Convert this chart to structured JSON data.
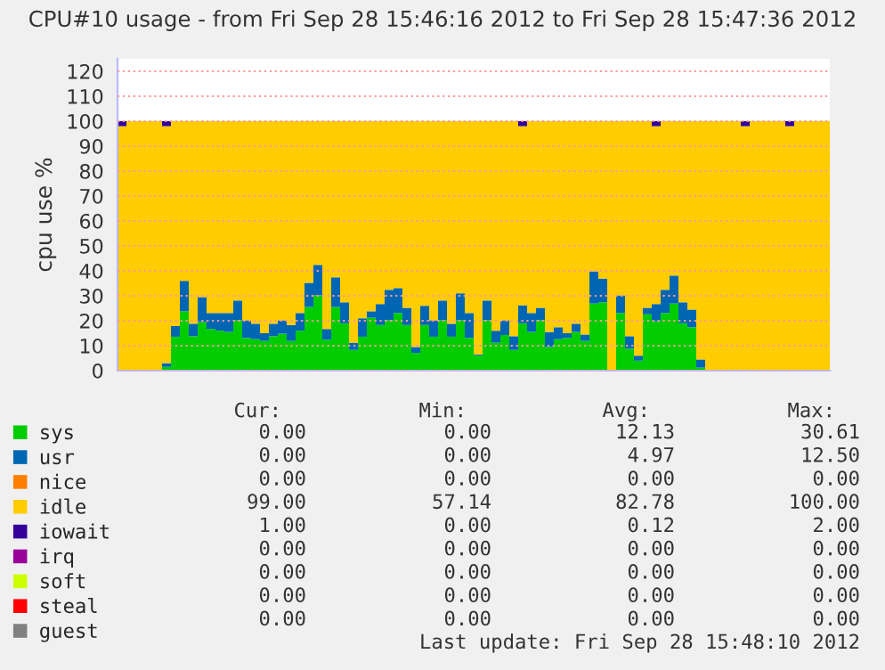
{
  "chart_data": {
    "type": "bar",
    "stacked": true,
    "title": "CPU#10 usage - from Fri Sep 28 15:46:16 2012 to Fri Sep 28 15:47:36 2012",
    "ylabel": "cpu use %",
    "categories": [
      null,
      null,
      null,
      null,
      null,
      null,
      null,
      null,
      null,
      null,
      null,
      null,
      null,
      null,
      null,
      null,
      null,
      null,
      null,
      null,
      null,
      null,
      null,
      null,
      null,
      null,
      null,
      null,
      null,
      null,
      null,
      null,
      null,
      null,
      null,
      null,
      null,
      null,
      null,
      null,
      null,
      null,
      null,
      null,
      null,
      null,
      null,
      null,
      null,
      null,
      null,
      null,
      null,
      null,
      null,
      null,
      null,
      null,
      null,
      null,
      null,
      null,
      null,
      null,
      null,
      null,
      null,
      null,
      null,
      null,
      null,
      null,
      null,
      null,
      null,
      null,
      null,
      null,
      null,
      null
    ],
    "ylim": [
      0,
      125
    ],
    "yticks": [
      0,
      10,
      20,
      30,
      40,
      50,
      60,
      70,
      80,
      90,
      100,
      110,
      120
    ],
    "grid": "y",
    "legend": "bottom",
    "series": [
      {
        "name": "sys",
        "color": "#00cc00",
        "values": [
          0,
          0,
          0,
          0,
          0,
          1.5,
          13.6,
          23.8,
          13.8,
          19.5,
          16.7,
          16.0,
          15.5,
          20.2,
          13.1,
          12.6,
          11.9,
          13.8,
          14.8,
          11.9,
          16.0,
          25.5,
          30.2,
          12.4,
          25.5,
          19.0,
          8.3,
          13.6,
          21.2,
          18.3,
          20.2,
          23.1,
          18.3,
          7.1,
          18.3,
          13.6,
          20.2,
          13.6,
          20.2,
          13.1,
          6.0,
          20.2,
          11.2,
          14.3,
          8.3,
          19.0,
          15.5,
          20.2,
          9.5,
          12.6,
          13.1,
          15.5,
          11.9,
          26.9,
          27.4,
          0,
          23.1,
          8.8,
          4.0,
          22.6,
          19.8,
          23.1,
          26.9,
          19.0,
          17.4,
          1.2,
          0,
          0,
          0,
          0,
          0,
          0,
          0,
          0,
          0,
          0,
          0,
          0,
          0,
          0
        ]
      },
      {
        "name": "usr",
        "color": "#0066b3",
        "values": [
          0,
          0,
          0,
          0,
          0,
          1.5,
          4.3,
          12.2,
          5.0,
          10.0,
          6.4,
          7.1,
          7.6,
          7.9,
          7.1,
          6.2,
          3.1,
          5.0,
          5.4,
          6.4,
          7.1,
          9.7,
          12.2,
          4.3,
          11.9,
          8.4,
          2.9,
          7.4,
          2.6,
          8.4,
          12.2,
          10.0,
          6.9,
          2.4,
          7.7,
          6.6,
          7.9,
          5.2,
          10.8,
          10.0,
          0.4,
          7.9,
          4.8,
          5.9,
          5.5,
          7.2,
          7.6,
          5.0,
          6.0,
          4.8,
          1.9,
          3.3,
          2.6,
          12.9,
          9.5,
          0,
          7.1,
          5.0,
          2.0,
          2.6,
          6.9,
          9.3,
          11.2,
          8.4,
          7.1,
          3.3,
          0,
          0,
          0,
          0,
          0,
          0,
          0,
          0,
          0,
          0,
          0,
          0,
          0,
          0
        ]
      },
      {
        "name": "nice",
        "color": "#ff8000",
        "values": [
          0,
          0,
          0,
          0,
          0,
          0,
          0,
          0,
          0,
          0,
          0,
          0,
          0,
          0,
          0,
          0,
          0,
          0,
          0,
          0,
          0,
          0,
          0,
          0,
          0,
          0,
          0,
          0,
          0,
          0,
          0,
          0,
          0,
          0,
          0,
          0,
          0,
          0,
          0,
          0,
          0,
          0,
          0,
          0,
          0,
          0,
          0,
          0,
          0,
          0,
          0,
          0,
          0,
          0,
          0,
          0,
          0,
          0,
          0,
          0,
          0,
          0,
          0,
          0,
          0,
          0,
          0,
          0,
          0,
          0,
          0,
          0,
          0,
          0,
          0,
          0,
          0,
          0,
          0,
          0
        ]
      },
      {
        "name": "idle",
        "color": "#ffcc00",
        "values": [
          98,
          100,
          100,
          100,
          100,
          95,
          82.1,
          64.0,
          81.2,
          70.5,
          76.9,
          76.9,
          76.9,
          71.9,
          79.8,
          81.2,
          85.0,
          81.2,
          79.8,
          81.7,
          76.9,
          64.8,
          57.6,
          83.3,
          62.6,
          72.6,
          88.8,
          79.0,
          76.2,
          73.3,
          67.6,
          66.9,
          74.8,
          90.5,
          74.0,
          79.8,
          71.9,
          81.2,
          69.0,
          76.9,
          93.6,
          71.9,
          84.0,
          79.8,
          86.2,
          71.8,
          76.9,
          74.8,
          84.5,
          82.6,
          85.0,
          81.2,
          85.5,
          60.2,
          63.1,
          100,
          69.8,
          86.2,
          94.0,
          74.8,
          71.3,
          67.6,
          61.9,
          72.6,
          75.5,
          95.5,
          100,
          100,
          100,
          100,
          98,
          100,
          100,
          100,
          100,
          98,
          100,
          100,
          100,
          100
        ]
      },
      {
        "name": "iowait",
        "color": "#330099",
        "values": [
          2,
          0,
          0,
          0,
          0,
          2,
          0,
          0,
          0,
          0,
          0,
          0,
          0,
          0,
          0,
          0,
          0,
          0,
          0,
          0,
          0,
          0,
          0,
          0,
          0,
          0,
          0,
          0,
          0,
          0,
          0,
          0,
          0,
          0,
          0,
          0,
          0,
          0,
          0,
          0,
          0,
          0,
          0,
          0,
          0,
          2,
          0,
          0,
          0,
          0,
          0,
          0,
          0,
          0,
          0,
          0,
          0,
          0,
          0,
          0,
          2,
          0,
          0,
          0,
          0,
          0,
          0,
          0,
          0,
          0,
          2,
          0,
          0,
          0,
          0,
          2,
          0,
          0,
          0,
          0
        ]
      },
      {
        "name": "irq",
        "color": "#990099",
        "values": [
          0,
          0,
          0,
          0,
          0,
          0,
          0,
          0,
          0,
          0,
          0,
          0,
          0,
          0,
          0,
          0,
          0,
          0,
          0,
          0,
          0,
          0,
          0,
          0,
          0,
          0,
          0,
          0,
          0,
          0,
          0,
          0,
          0,
          0,
          0,
          0,
          0,
          0,
          0,
          0,
          0,
          0,
          0,
          0,
          0,
          0,
          0,
          0,
          0,
          0,
          0,
          0,
          0,
          0,
          0,
          0,
          0,
          0,
          0,
          0,
          0,
          0,
          0,
          0,
          0,
          0,
          0,
          0,
          0,
          0,
          0,
          0,
          0,
          0,
          0,
          0,
          0,
          0,
          0,
          0
        ]
      },
      {
        "name": "soft",
        "color": "#ccff00",
        "values": [
          0,
          0,
          0,
          0,
          0,
          0,
          0,
          0,
          0,
          0,
          0,
          0,
          0,
          0,
          0,
          0,
          0,
          0,
          0,
          0,
          0,
          0,
          0,
          0,
          0,
          0,
          0,
          0,
          0,
          0,
          0,
          0,
          0,
          0,
          0,
          0,
          0,
          0,
          0,
          0,
          0,
          0,
          0,
          0,
          0,
          0,
          0,
          0,
          0,
          0,
          0,
          0,
          0,
          0,
          0,
          0,
          0,
          0,
          0,
          0,
          0,
          0,
          0,
          0,
          0,
          0,
          0,
          0,
          0,
          0,
          0,
          0,
          0,
          0,
          0,
          0,
          0,
          0,
          0,
          0
        ]
      },
      {
        "name": "steal",
        "color": "#ff0000",
        "values": [
          0,
          0,
          0,
          0,
          0,
          0,
          0,
          0,
          0,
          0,
          0,
          0,
          0,
          0,
          0,
          0,
          0,
          0,
          0,
          0,
          0,
          0,
          0,
          0,
          0,
          0,
          0,
          0,
          0,
          0,
          0,
          0,
          0,
          0,
          0,
          0,
          0,
          0,
          0,
          0,
          0,
          0,
          0,
          0,
          0,
          0,
          0,
          0,
          0,
          0,
          0,
          0,
          0,
          0,
          0,
          0,
          0,
          0,
          0,
          0,
          0,
          0,
          0,
          0,
          0,
          0,
          0,
          0,
          0,
          0,
          0,
          0,
          0,
          0,
          0,
          0,
          0,
          0,
          0,
          0
        ]
      },
      {
        "name": "guest",
        "color": "#808080",
        "values": [
          0,
          0,
          0,
          0,
          0,
          0,
          0,
          0,
          0,
          0,
          0,
          0,
          0,
          0,
          0,
          0,
          0,
          0,
          0,
          0,
          0,
          0,
          0,
          0,
          0,
          0,
          0,
          0,
          0,
          0,
          0,
          0,
          0,
          0,
          0,
          0,
          0,
          0,
          0,
          0,
          0,
          0,
          0,
          0,
          0,
          0,
          0,
          0,
          0,
          0,
          0,
          0,
          0,
          0,
          0,
          0,
          0,
          0,
          0,
          0,
          0,
          0,
          0,
          0,
          0,
          0,
          0,
          0,
          0,
          0,
          0,
          0,
          0,
          0,
          0,
          0,
          0,
          0,
          0,
          0
        ]
      }
    ],
    "annotations": [
      "Cur:",
      "Min:",
      "Avg:",
      "Max:",
      "0.00",
      "0.00",
      "12.13",
      "30.61",
      "0.00",
      "0.00",
      "4.97",
      "12.50",
      "0.00",
      "0.00",
      "0.00",
      "0.00",
      "99.00",
      "57.14",
      "82.78",
      "100.00",
      "1.00",
      "0.00",
      "0.12",
      "2.00",
      "0.00",
      "0.00",
      "0.00",
      "0.00",
      "0.00",
      "0.00",
      "0.00",
      "0.00",
      "0.00",
      "0.00",
      "0.00",
      "0.00",
      "0.00",
      "0.00",
      "0.00",
      "0.00",
      "Last update: Fri Sep 28 15:48:10 2012"
    ]
  }
}
